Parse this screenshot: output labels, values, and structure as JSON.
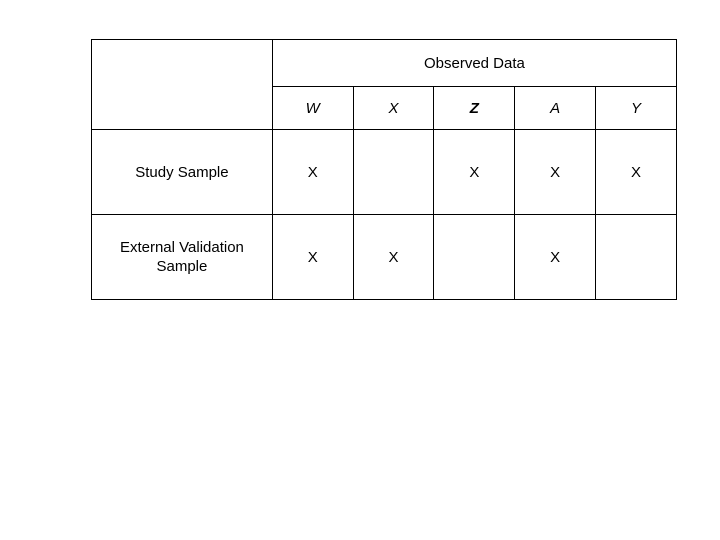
{
  "header": {
    "group_label": "Observed Data",
    "variables": [
      {
        "label": "W",
        "style": "italic"
      },
      {
        "label": "X",
        "style": "italic"
      },
      {
        "label": "Z",
        "style": "bold-italic"
      },
      {
        "label": "A",
        "style": "italic"
      },
      {
        "label": "Y",
        "style": "italic"
      }
    ]
  },
  "rows": [
    {
      "label": "Study Sample",
      "cells": [
        "X",
        "",
        "X",
        "X",
        "X"
      ]
    },
    {
      "label": "External Validation Sample",
      "cells": [
        "X",
        "X",
        "",
        "X",
        ""
      ]
    }
  ]
}
